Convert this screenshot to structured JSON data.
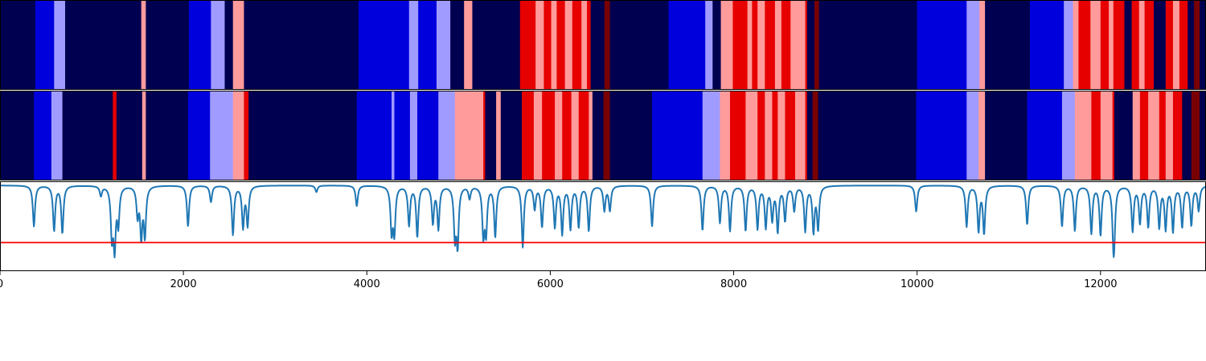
{
  "chart_data": {
    "type": "heatmap",
    "title": "",
    "xlabel": "",
    "ylabel": "",
    "xlim": [
      0,
      13150
    ],
    "x_ticks": [
      0,
      2000,
      4000,
      6000,
      8000,
      10000,
      12000
    ],
    "x_tick_labels": [
      "0",
      "2000",
      "4000",
      "6000",
      "8000",
      "10000",
      "12000"
    ],
    "grid": false,
    "legend": "none",
    "colors": {
      "0": "#000050",
      "1": "#0000dc",
      "2": "#a09bff",
      "3": "#ff9b9b",
      "4": "#e60000",
      "5": "#780000",
      "signal_line": "#1f77b4",
      "threshold_line": "#ff0000",
      "frame": "#000000",
      "background": "#ffffff"
    },
    "rows": [
      {
        "name": "row-1",
        "segments": [
          [
            0,
            385,
            0
          ],
          [
            385,
            590,
            1
          ],
          [
            590,
            710,
            2
          ],
          [
            710,
            1540,
            0
          ],
          [
            1540,
            1590,
            3
          ],
          [
            1590,
            2060,
            0
          ],
          [
            2060,
            2300,
            1
          ],
          [
            2300,
            2450,
            2
          ],
          [
            2450,
            2540,
            0
          ],
          [
            2540,
            2660,
            3
          ],
          [
            2660,
            3910,
            0
          ],
          [
            3910,
            4460,
            1
          ],
          [
            4460,
            4560,
            2
          ],
          [
            4560,
            4760,
            1
          ],
          [
            4760,
            4910,
            2
          ],
          [
            4910,
            5060,
            0
          ],
          [
            5060,
            5150,
            3
          ],
          [
            5150,
            5670,
            0
          ],
          [
            5670,
            5840,
            4
          ],
          [
            5840,
            5930,
            3
          ],
          [
            5930,
            6010,
            4
          ],
          [
            6010,
            6070,
            3
          ],
          [
            6070,
            6160,
            4
          ],
          [
            6160,
            6240,
            3
          ],
          [
            6240,
            6340,
            4
          ],
          [
            6340,
            6400,
            3
          ],
          [
            6400,
            6440,
            4
          ],
          [
            6440,
            6590,
            0
          ],
          [
            6590,
            6650,
            5
          ],
          [
            6650,
            7290,
            0
          ],
          [
            7290,
            7690,
            1
          ],
          [
            7690,
            7770,
            2
          ],
          [
            7770,
            7860,
            0
          ],
          [
            7860,
            7990,
            3
          ],
          [
            7990,
            8150,
            4
          ],
          [
            8150,
            8200,
            3
          ],
          [
            8200,
            8260,
            4
          ],
          [
            8260,
            8340,
            3
          ],
          [
            8340,
            8450,
            4
          ],
          [
            8450,
            8520,
            3
          ],
          [
            8520,
            8620,
            4
          ],
          [
            8620,
            8780,
            3
          ],
          [
            8780,
            8800,
            4
          ],
          [
            8800,
            8880,
            0
          ],
          [
            8880,
            8930,
            5
          ],
          [
            8930,
            10000,
            0
          ],
          [
            10000,
            10540,
            1
          ],
          [
            10540,
            10680,
            2
          ],
          [
            10680,
            10740,
            3
          ],
          [
            10740,
            11230,
            0
          ],
          [
            11230,
            11600,
            1
          ],
          [
            11600,
            11700,
            2
          ],
          [
            11700,
            11760,
            3
          ],
          [
            11760,
            11890,
            4
          ],
          [
            11890,
            12000,
            3
          ],
          [
            12000,
            12090,
            4
          ],
          [
            12090,
            12140,
            3
          ],
          [
            12140,
            12260,
            4
          ],
          [
            12260,
            12340,
            0
          ],
          [
            12340,
            12420,
            4
          ],
          [
            12420,
            12480,
            3
          ],
          [
            12480,
            12580,
            4
          ],
          [
            12580,
            12710,
            0
          ],
          [
            12710,
            12790,
            4
          ],
          [
            12790,
            12860,
            3
          ],
          [
            12860,
            12950,
            4
          ],
          [
            12950,
            13020,
            0
          ],
          [
            13020,
            13080,
            5
          ],
          [
            13080,
            13150,
            0
          ]
        ]
      },
      {
        "name": "row-2",
        "segments": [
          [
            0,
            370,
            0
          ],
          [
            370,
            560,
            1
          ],
          [
            560,
            680,
            2
          ],
          [
            680,
            1230,
            0
          ],
          [
            1230,
            1270,
            4
          ],
          [
            1270,
            1550,
            0
          ],
          [
            1550,
            1590,
            3
          ],
          [
            1590,
            2050,
            0
          ],
          [
            2050,
            2290,
            1
          ],
          [
            2290,
            2540,
            2
          ],
          [
            2540,
            2660,
            3
          ],
          [
            2660,
            2710,
            4
          ],
          [
            2710,
            3890,
            0
          ],
          [
            3890,
            4270,
            1
          ],
          [
            4270,
            4300,
            2
          ],
          [
            4300,
            4470,
            1
          ],
          [
            4470,
            4550,
            2
          ],
          [
            4550,
            4780,
            1
          ],
          [
            4780,
            4960,
            2
          ],
          [
            4960,
            5270,
            3
          ],
          [
            5270,
            5290,
            4
          ],
          [
            5290,
            5410,
            0
          ],
          [
            5410,
            5460,
            3
          ],
          [
            5460,
            5690,
            0
          ],
          [
            5690,
            5820,
            4
          ],
          [
            5820,
            5910,
            3
          ],
          [
            5910,
            6050,
            4
          ],
          [
            6050,
            6130,
            3
          ],
          [
            6130,
            6230,
            4
          ],
          [
            6230,
            6310,
            3
          ],
          [
            6310,
            6420,
            4
          ],
          [
            6420,
            6460,
            3
          ],
          [
            6460,
            6580,
            0
          ],
          [
            6580,
            6650,
            5
          ],
          [
            6650,
            7110,
            0
          ],
          [
            7110,
            7660,
            1
          ],
          [
            7660,
            7850,
            2
          ],
          [
            7850,
            7960,
            3
          ],
          [
            7960,
            8130,
            4
          ],
          [
            8130,
            8260,
            3
          ],
          [
            8260,
            8340,
            4
          ],
          [
            8340,
            8420,
            3
          ],
          [
            8420,
            8480,
            4
          ],
          [
            8480,
            8560,
            3
          ],
          [
            8560,
            8670,
            4
          ],
          [
            8670,
            8780,
            3
          ],
          [
            8780,
            8800,
            4
          ],
          [
            8800,
            8860,
            0
          ],
          [
            8860,
            8920,
            5
          ],
          [
            8920,
            9990,
            0
          ],
          [
            9990,
            10540,
            1
          ],
          [
            10540,
            10670,
            2
          ],
          [
            10670,
            10740,
            3
          ],
          [
            10740,
            11200,
            0
          ],
          [
            11200,
            11580,
            1
          ],
          [
            11580,
            11720,
            2
          ],
          [
            11720,
            11900,
            3
          ],
          [
            11900,
            12000,
            4
          ],
          [
            12000,
            12130,
            3
          ],
          [
            12130,
            12150,
            4
          ],
          [
            12150,
            12350,
            0
          ],
          [
            12350,
            12430,
            3
          ],
          [
            12430,
            12520,
            4
          ],
          [
            12520,
            12640,
            3
          ],
          [
            12640,
            12710,
            4
          ],
          [
            12710,
            12790,
            3
          ],
          [
            12790,
            12890,
            4
          ],
          [
            12890,
            12990,
            0
          ],
          [
            12990,
            13080,
            5
          ],
          [
            13080,
            13150,
            0
          ]
        ]
      }
    ],
    "signal": {
      "name": "signal",
      "ylim": [
        -1.05,
        0.05
      ],
      "baseline": 0,
      "threshold": -0.7,
      "dips": [
        [
          370,
          -0.5
        ],
        [
          590,
          -0.55
        ],
        [
          680,
          -0.58
        ],
        [
          1100,
          -0.12
        ],
        [
          1220,
          -0.6
        ],
        [
          1250,
          -0.72
        ],
        [
          1290,
          -0.45
        ],
        [
          1500,
          -0.35
        ],
        [
          1540,
          -0.6
        ],
        [
          1580,
          -0.6
        ],
        [
          2050,
          -0.5
        ],
        [
          2300,
          -0.2
        ],
        [
          2540,
          -0.6
        ],
        [
          2650,
          -0.5
        ],
        [
          2700,
          -0.48
        ],
        [
          3450,
          -0.08
        ],
        [
          3890,
          -0.25
        ],
        [
          4270,
          -0.55
        ],
        [
          4300,
          -0.55
        ],
        [
          4460,
          -0.48
        ],
        [
          4550,
          -0.62
        ],
        [
          4720,
          -0.45
        ],
        [
          4780,
          -0.52
        ],
        [
          4960,
          -0.6
        ],
        [
          4990,
          -0.7
        ],
        [
          5120,
          -0.15
        ],
        [
          5270,
          -0.58
        ],
        [
          5300,
          -0.55
        ],
        [
          5400,
          -0.62
        ],
        [
          5700,
          -0.75
        ],
        [
          5830,
          -0.28
        ],
        [
          5910,
          -0.5
        ],
        [
          6050,
          -0.5
        ],
        [
          6130,
          -0.58
        ],
        [
          6220,
          -0.52
        ],
        [
          6310,
          -0.5
        ],
        [
          6420,
          -0.55
        ],
        [
          6590,
          -0.3
        ],
        [
          6650,
          -0.3
        ],
        [
          7110,
          -0.5
        ],
        [
          7660,
          -0.55
        ],
        [
          7850,
          -0.45
        ],
        [
          7960,
          -0.55
        ],
        [
          8130,
          -0.55
        ],
        [
          8260,
          -0.52
        ],
        [
          8350,
          -0.5
        ],
        [
          8420,
          -0.4
        ],
        [
          8480,
          -0.55
        ],
        [
          8560,
          -0.42
        ],
        [
          8660,
          -0.3
        ],
        [
          8780,
          -0.55
        ],
        [
          8870,
          -0.55
        ],
        [
          8920,
          -0.52
        ],
        [
          9990,
          -0.32
        ],
        [
          10540,
          -0.5
        ],
        [
          10670,
          -0.55
        ],
        [
          10730,
          -0.58
        ],
        [
          11200,
          -0.48
        ],
        [
          11580,
          -0.5
        ],
        [
          11720,
          -0.55
        ],
        [
          11900,
          -0.58
        ],
        [
          12000,
          -0.6
        ],
        [
          12140,
          -0.55
        ],
        [
          12150,
          -0.42
        ],
        [
          12350,
          -0.55
        ],
        [
          12430,
          -0.45
        ],
        [
          12520,
          -0.5
        ],
        [
          12640,
          -0.5
        ],
        [
          12710,
          -0.52
        ],
        [
          12790,
          -0.55
        ],
        [
          12890,
          -0.5
        ],
        [
          12990,
          -0.48
        ],
        [
          13070,
          -0.3
        ]
      ]
    }
  }
}
